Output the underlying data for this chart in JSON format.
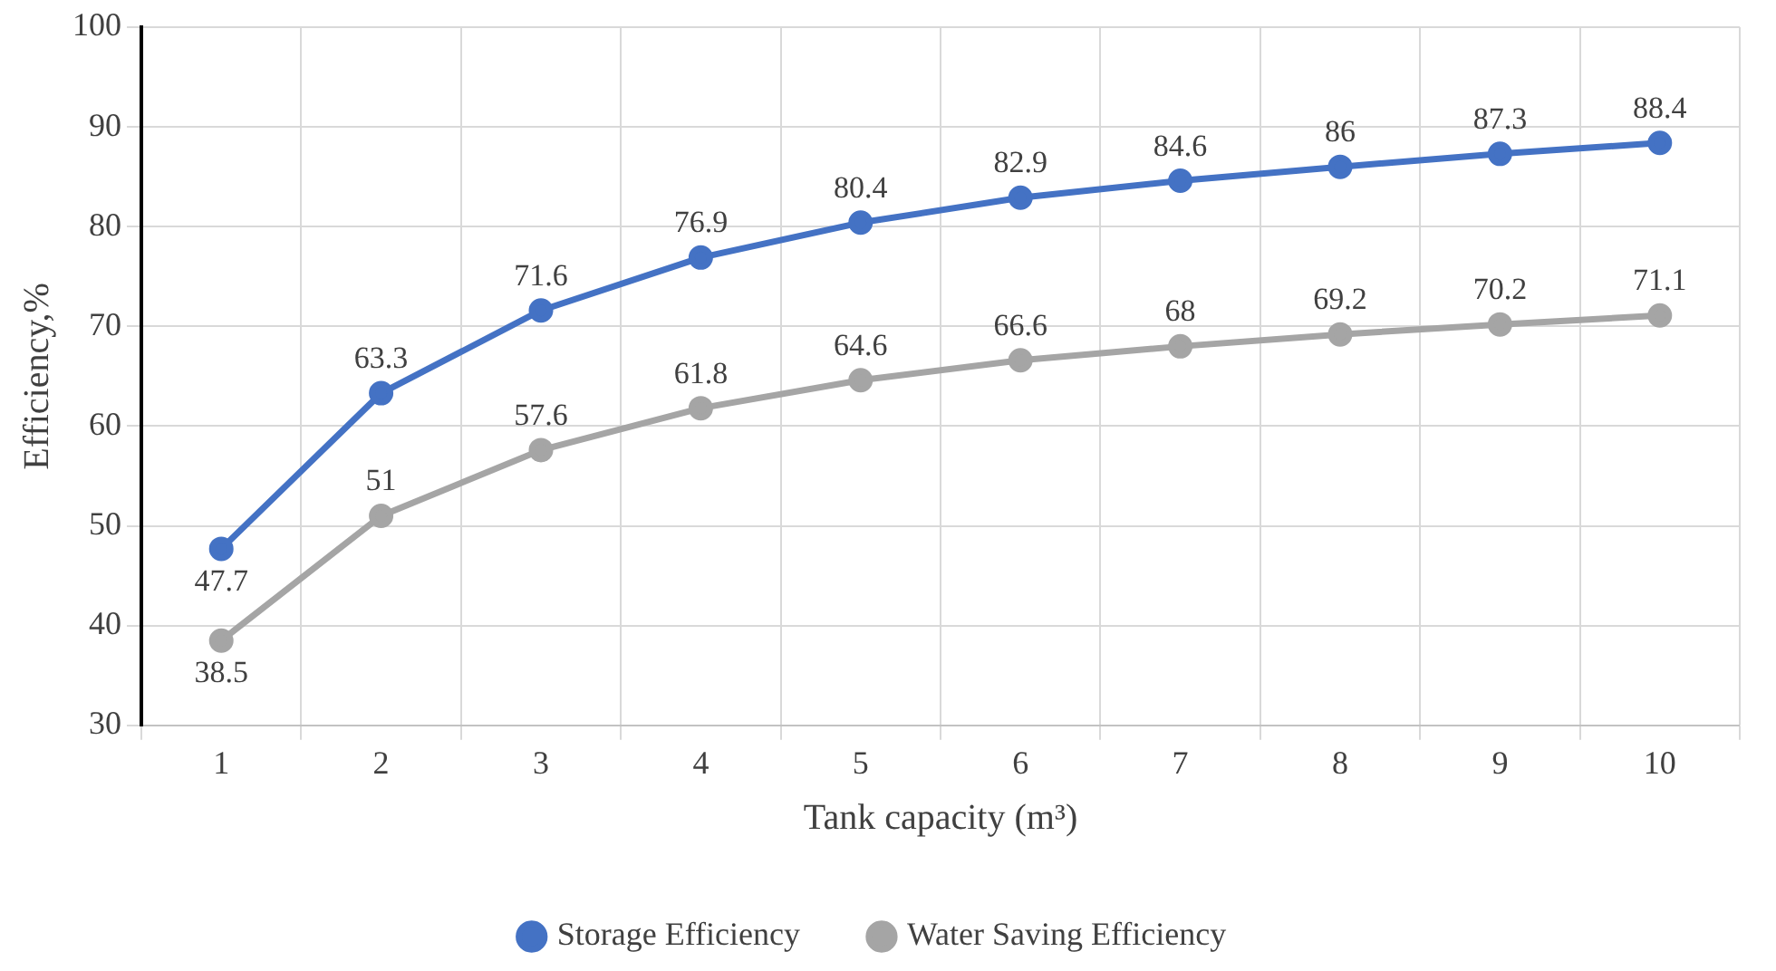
{
  "chart_data": {
    "type": "line",
    "xlabel": "Tank capacity (m³)",
    "ylabel": "Efficiency,%",
    "categories": [
      "1",
      "2",
      "3",
      "4",
      "5",
      "6",
      "7",
      "8",
      "9",
      "10"
    ],
    "series": [
      {
        "name": "Storage Efficiency",
        "color": "#4472c4",
        "values": [
          47.7,
          63.3,
          71.6,
          76.9,
          80.4,
          82.9,
          84.6,
          86,
          87.3,
          88.4
        ]
      },
      {
        "name": "Water Saving Efficiency",
        "color": "#a5a5a5",
        "values": [
          38.5,
          51,
          57.6,
          61.8,
          64.6,
          66.6,
          68,
          69.2,
          70.2,
          71.1
        ]
      }
    ],
    "ylim": [
      30,
      100
    ],
    "yticks": [
      30,
      40,
      50,
      60,
      70,
      80,
      90,
      100
    ],
    "grid": true,
    "legend": "bottom",
    "marker": "circle",
    "line_style": "solid",
    "data_labels": true
  }
}
